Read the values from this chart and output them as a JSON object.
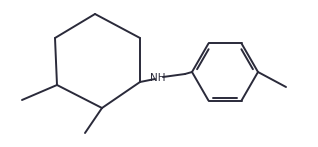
{
  "background": "#ffffff",
  "bond_color": "#2a2a3a",
  "bond_lw": 1.4,
  "text_color": "#2a2a3a",
  "font_size": 7.5,
  "nh_label": "NH"
}
